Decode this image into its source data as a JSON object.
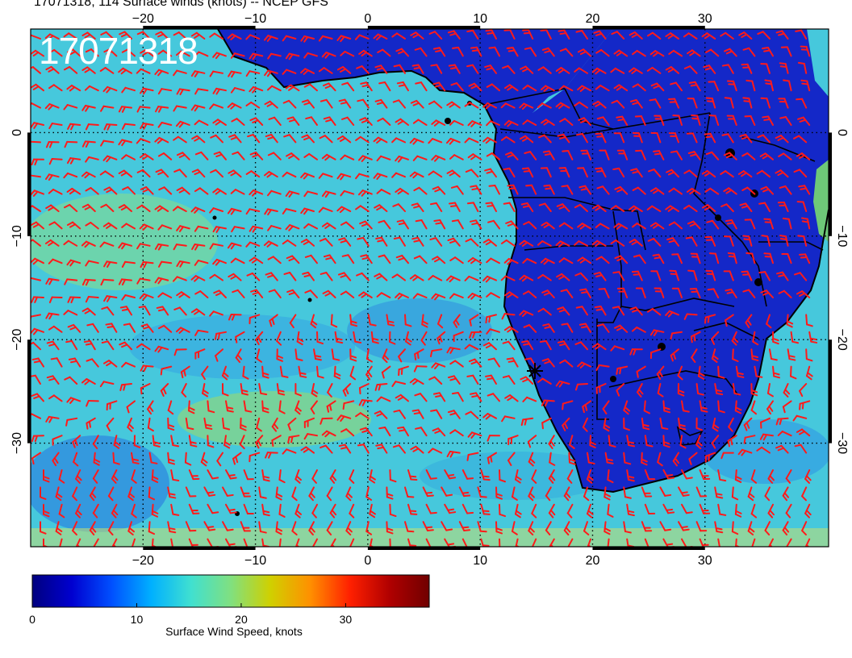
{
  "title": "17071318, 114 Surface winds (knots) -- NCEP GFS",
  "stamp": "17071318",
  "colorbar": {
    "title": "Surface Wind Speed, knots",
    "min": 0,
    "max": 38,
    "tick_values": [
      0,
      10,
      20,
      30
    ],
    "tick_labels": [
      "0",
      "10",
      "20",
      "30"
    ],
    "colors": [
      "#00007f",
      "#0000d0",
      "#0050ff",
      "#00b0ff",
      "#40e0d0",
      "#80e080",
      "#d0d000",
      "#ff9000",
      "#ff2000",
      "#b00000",
      "#700000"
    ]
  },
  "map": {
    "lon_range": [
      -30,
      41
    ],
    "lat_range": [
      -40,
      10
    ],
    "lon_ticks": [
      -20,
      -10,
      0,
      10,
      20,
      30
    ],
    "lon_tick_labels": [
      "−20",
      "−10",
      "0",
      "10",
      "20",
      "30"
    ],
    "lat_ticks": [
      0,
      -10,
      -20,
      -30
    ],
    "lat_tick_labels": [
      "0",
      "−10",
      "−20",
      "−30"
    ],
    "ocean_color": "#46c8dc",
    "land_color": "#1428c8",
    "barb_color": "#ff1a1a",
    "grid": "dotted"
  }
}
